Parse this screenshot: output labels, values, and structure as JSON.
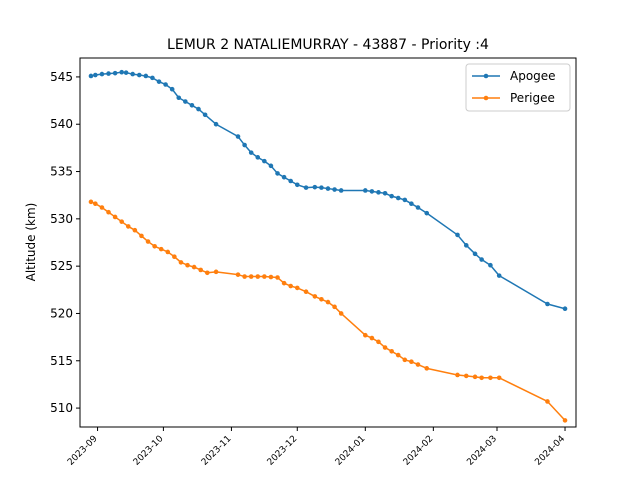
{
  "chart_data": {
    "type": "line",
    "title": "LEMUR 2 NATALIEMURRAY - 43887 - Priority :4",
    "xlabel": "",
    "ylabel": "Altitude (km)",
    "ylim": [
      508,
      547
    ],
    "xlim": [
      "2023-08-24",
      "2024-04-06"
    ],
    "y_ticks": [
      510,
      515,
      520,
      525,
      530,
      535,
      540,
      545
    ],
    "x_ticks": [
      "2023-09",
      "2023-10",
      "2023-11",
      "2023-12",
      "2024-01",
      "2024-02",
      "2024-03",
      "2024-04"
    ],
    "grid": false,
    "legend_position": "top-right",
    "series": [
      {
        "name": "Apogee",
        "color": "#1f77b4",
        "x": [
          "2023-08-29",
          "2023-08-31",
          "2023-09-03",
          "2023-09-06",
          "2023-09-09",
          "2023-09-12",
          "2023-09-14",
          "2023-09-17",
          "2023-09-20",
          "2023-09-23",
          "2023-09-26",
          "2023-09-29",
          "2023-10-02",
          "2023-10-05",
          "2023-10-08",
          "2023-10-11",
          "2023-10-14",
          "2023-10-17",
          "2023-10-20",
          "2023-10-25",
          "2023-11-04",
          "2023-11-07",
          "2023-11-10",
          "2023-11-13",
          "2023-11-16",
          "2023-11-19",
          "2023-11-22",
          "2023-11-25",
          "2023-11-28",
          "2023-12-01",
          "2023-12-05",
          "2023-12-09",
          "2023-12-12",
          "2023-12-15",
          "2023-12-18",
          "2023-12-21",
          "2024-01-01",
          "2024-01-04",
          "2024-01-07",
          "2024-01-10",
          "2024-01-13",
          "2024-01-16",
          "2024-01-19",
          "2024-01-22",
          "2024-01-25",
          "2024-01-29",
          "2024-02-12",
          "2024-02-16",
          "2024-02-20",
          "2024-02-23",
          "2024-02-27",
          "2024-03-02",
          "2024-03-24",
          "2024-04-01"
        ],
        "y": [
          545.1,
          545.2,
          545.3,
          545.35,
          545.4,
          545.5,
          545.45,
          545.3,
          545.2,
          545.1,
          544.9,
          544.5,
          544.2,
          543.7,
          542.8,
          542.4,
          542.0,
          541.6,
          541.0,
          540.0,
          538.7,
          537.8,
          537.0,
          536.5,
          536.1,
          535.6,
          534.8,
          534.4,
          534.0,
          533.6,
          533.3,
          533.35,
          533.3,
          533.2,
          533.1,
          533.0,
          533.0,
          532.9,
          532.8,
          532.7,
          532.4,
          532.2,
          532.0,
          531.6,
          531.2,
          530.6,
          528.3,
          527.2,
          526.3,
          525.7,
          525.1,
          524.0,
          521.0,
          520.5
        ]
      },
      {
        "name": "Perigee",
        "color": "#ff7f0e",
        "x": [
          "2023-08-29",
          "2023-08-31",
          "2023-09-03",
          "2023-09-06",
          "2023-09-09",
          "2023-09-12",
          "2023-09-15",
          "2023-09-18",
          "2023-09-21",
          "2023-09-24",
          "2023-09-27",
          "2023-09-30",
          "2023-10-03",
          "2023-10-06",
          "2023-10-09",
          "2023-10-12",
          "2023-10-15",
          "2023-10-18",
          "2023-10-21",
          "2023-10-25",
          "2023-11-04",
          "2023-11-07",
          "2023-11-10",
          "2023-11-13",
          "2023-11-16",
          "2023-11-19",
          "2023-11-22",
          "2023-11-25",
          "2023-11-28",
          "2023-12-01",
          "2023-12-05",
          "2023-12-09",
          "2023-12-12",
          "2023-12-15",
          "2023-12-18",
          "2023-12-21",
          "2024-01-01",
          "2024-01-04",
          "2024-01-07",
          "2024-01-10",
          "2024-01-13",
          "2024-01-16",
          "2024-01-19",
          "2024-01-22",
          "2024-01-25",
          "2024-01-29",
          "2024-02-12",
          "2024-02-16",
          "2024-02-20",
          "2024-02-23",
          "2024-02-27",
          "2024-03-02",
          "2024-03-24",
          "2024-04-01"
        ],
        "y": [
          531.8,
          531.6,
          531.2,
          530.7,
          530.2,
          529.7,
          529.2,
          528.8,
          528.2,
          527.6,
          527.1,
          526.8,
          526.5,
          526.0,
          525.4,
          525.1,
          524.9,
          524.6,
          524.3,
          524.4,
          524.1,
          523.9,
          523.9,
          523.9,
          523.9,
          523.85,
          523.8,
          523.2,
          522.9,
          522.7,
          522.3,
          521.8,
          521.5,
          521.2,
          520.7,
          520.0,
          517.7,
          517.4,
          517.0,
          516.4,
          516.0,
          515.6,
          515.1,
          514.9,
          514.6,
          514.2,
          513.5,
          513.4,
          513.3,
          513.2,
          513.2,
          513.2,
          510.7,
          508.7
        ]
      }
    ]
  }
}
